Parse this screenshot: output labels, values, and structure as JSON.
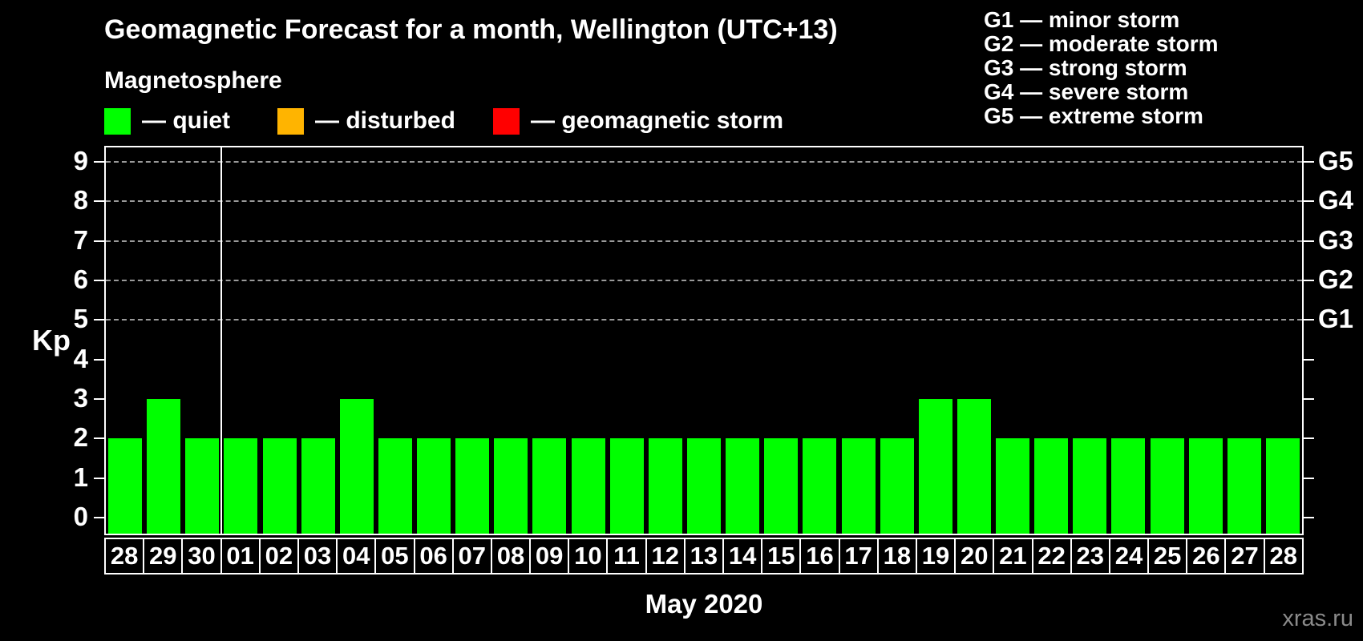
{
  "header": {
    "title": "Geomagnetic Forecast for a month, Wellington (UTC+13)",
    "subtitle": "Magnetosphere"
  },
  "legend": [
    {
      "id": "quiet",
      "label": "— quiet",
      "color": "#00FF00"
    },
    {
      "id": "disturbed",
      "label": "— disturbed",
      "color": "#FFB400"
    },
    {
      "id": "geomagnetic-storm",
      "label": "— geomagnetic storm",
      "color": "#FF0000"
    }
  ],
  "g_legend": [
    "G1 — minor storm",
    "G2 — moderate storm",
    "G3 — strong storm",
    "G4 — severe storm",
    "G5 — extreme storm"
  ],
  "watermark": "xras.ru",
  "chart_data": {
    "type": "bar",
    "title": "Geomagnetic Forecast for a month, Wellington (UTC+13)",
    "xlabel": "May 2020",
    "ylabel": "Kp",
    "categories": [
      "28",
      "29",
      "30",
      "01",
      "02",
      "03",
      "04",
      "05",
      "06",
      "07",
      "08",
      "09",
      "10",
      "11",
      "12",
      "13",
      "14",
      "15",
      "16",
      "17",
      "18",
      "19",
      "20",
      "21",
      "22",
      "23",
      "24",
      "25",
      "26",
      "27",
      "28"
    ],
    "values": [
      2,
      3,
      2,
      2,
      2,
      2,
      3,
      2,
      2,
      2,
      2,
      2,
      2,
      2,
      2,
      2,
      2,
      2,
      2,
      2,
      2,
      3,
      3,
      2,
      2,
      2,
      2,
      2,
      2,
      2,
      2
    ],
    "ylim": [
      0,
      9
    ],
    "y_ticks": [
      0,
      1,
      2,
      3,
      4,
      5,
      6,
      7,
      8,
      9
    ],
    "gridlines": [
      5,
      6,
      7,
      8,
      9
    ],
    "grid_style": "dashed",
    "right_axis_labels": [
      {
        "label": "G1",
        "value": 5
      },
      {
        "label": "G2",
        "value": 6
      },
      {
        "label": "G3",
        "value": 7
      },
      {
        "label": "G4",
        "value": 8
      },
      {
        "label": "G5",
        "value": 9
      }
    ],
    "month_separator_index": 3,
    "bar_color": "#00FF00",
    "background_color": "#000000",
    "legend_position": "top"
  }
}
